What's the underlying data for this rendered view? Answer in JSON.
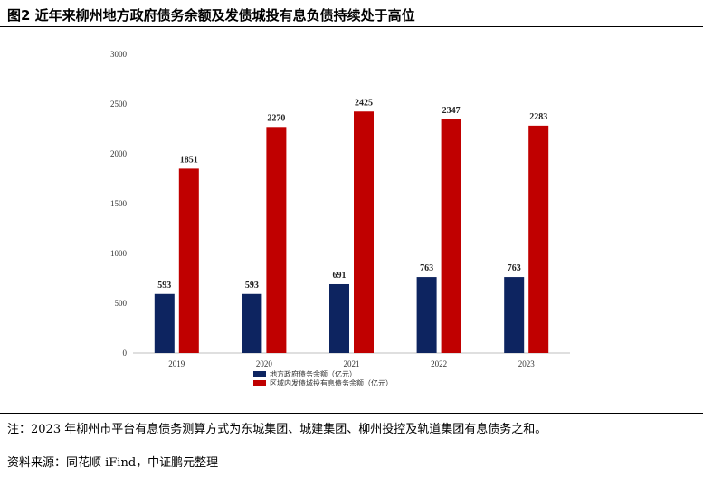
{
  "header": {
    "title": "图2  近年来柳州地方政府债务余额及发债城投有息负债持续处于高位"
  },
  "footer": {
    "note": "注：2023 年柳州市平台有息债务测算方式为东城集团、城建集团、柳州投控及轨道集团有息债务之和。",
    "source": "资料来源：同花顺 iFind，中证鹏元整理"
  },
  "colors": {
    "series1": "#0d2460",
    "series2": "#c00000",
    "axis": "#bfbfbf"
  },
  "chart_data": {
    "type": "bar",
    "title": "",
    "xlabel": "",
    "ylabel": "",
    "ylim": [
      0,
      3000
    ],
    "yticks": [
      0,
      500,
      1000,
      1500,
      2000,
      2500,
      3000
    ],
    "grid": false,
    "legend_position": "bottom-left",
    "categories": [
      "2019",
      "2020",
      "2021",
      "2022",
      "2023"
    ],
    "series": [
      {
        "name": "地方政府债务余额（亿元）",
        "values": [
          593,
          593,
          691,
          763,
          763
        ]
      },
      {
        "name": "区域内发债城投有息债务余额（亿元）",
        "values": [
          1851,
          2270,
          2425,
          2347,
          2283
        ]
      }
    ]
  }
}
